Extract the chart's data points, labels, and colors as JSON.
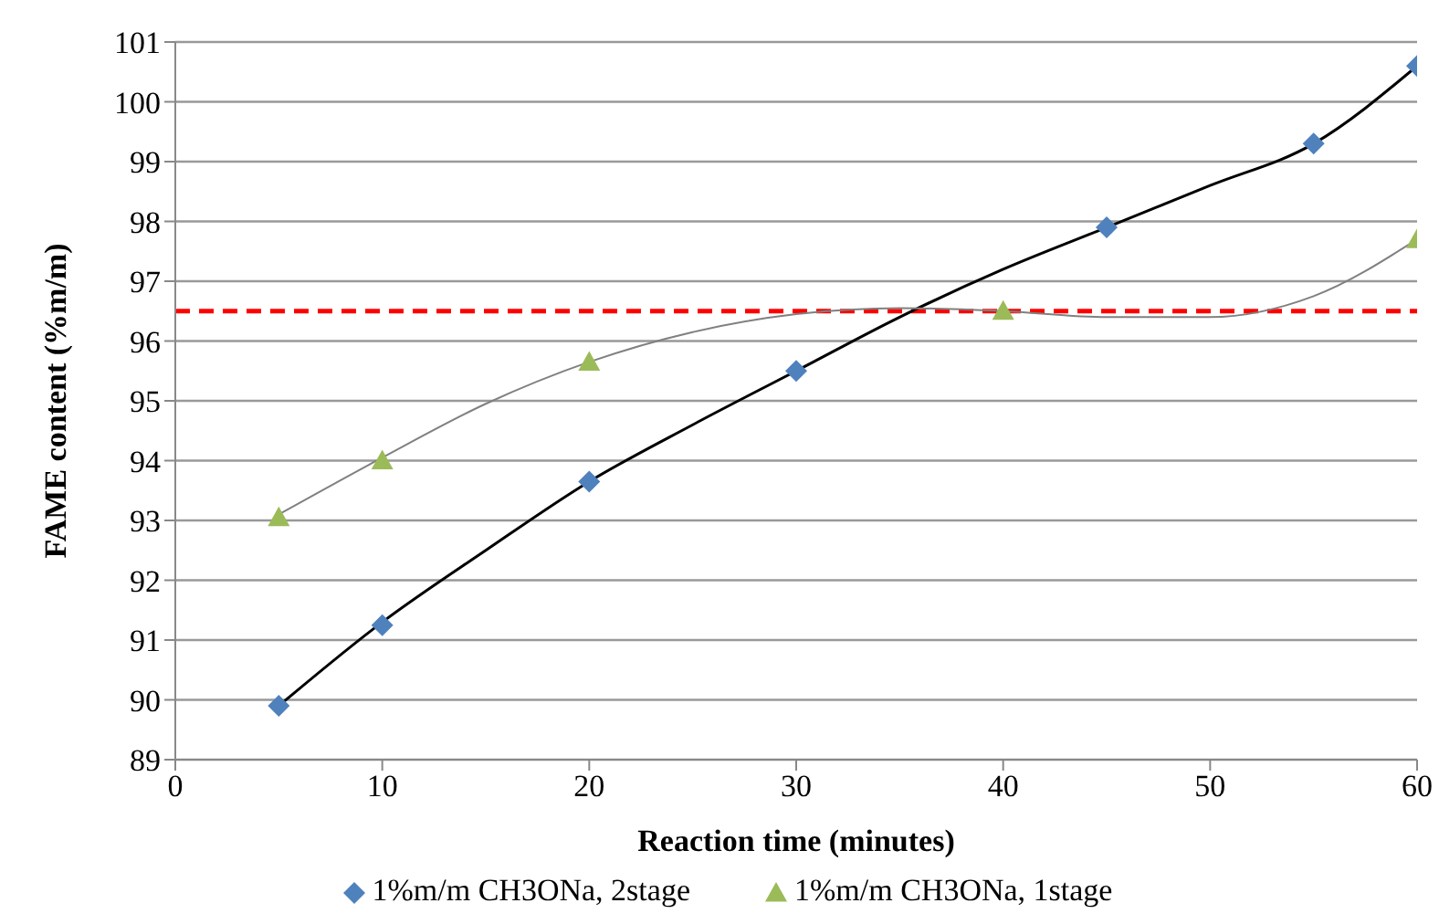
{
  "chart_data": {
    "type": "scatter",
    "xlabel": "Reaction time (minutes)",
    "ylabel": "FAME content (%m/m)",
    "xlim": [
      0,
      60
    ],
    "xticks": [
      0,
      10,
      20,
      30,
      40,
      50,
      60
    ],
    "ylim": [
      89,
      101
    ],
    "yticks": [
      89,
      90,
      91,
      92,
      93,
      94,
      95,
      96,
      97,
      98,
      99,
      100,
      101
    ],
    "grid": "y",
    "legend": "bottom",
    "series": [
      {
        "name": "1%m/m CH3ONa, 2stage",
        "type": "scatter",
        "marker": "diamond",
        "color": "#4f81bd",
        "x": [
          5,
          10,
          20,
          30,
          45,
          55,
          60
        ],
        "values": [
          89.9,
          91.25,
          93.65,
          95.5,
          97.9,
          99.3,
          100.6
        ]
      },
      {
        "name": "1%m/m CH3ONa, 1stage",
        "type": "scatter",
        "marker": "triangle",
        "color": "#9bbb59",
        "x": [
          5,
          10,
          20,
          40,
          60
        ],
        "values": [
          93.05,
          94.0,
          95.65,
          96.5,
          97.7
        ]
      },
      {
        "type": "line",
        "marker": "none",
        "color": "#000000",
        "x": [
          5,
          10,
          15,
          20,
          25,
          30,
          35,
          40,
          45,
          50,
          55,
          60
        ],
        "values": [
          89.9,
          91.3,
          92.5,
          93.65,
          94.6,
          95.5,
          96.4,
          97.2,
          97.9,
          98.6,
          99.3,
          100.6
        ]
      },
      {
        "type": "line",
        "marker": "none",
        "color": "#808080",
        "x": [
          5,
          10,
          15,
          20,
          25,
          30,
          35,
          40,
          45,
          50,
          55,
          60
        ],
        "values": [
          93.1,
          94.05,
          94.95,
          95.65,
          96.15,
          96.45,
          96.55,
          96.5,
          96.4,
          96.4,
          96.75,
          97.7
        ]
      }
    ],
    "ref_lines": [
      {
        "axis": "y",
        "value": 96.5,
        "color": "#ff0000",
        "line_style": "dashed"
      }
    ]
  }
}
